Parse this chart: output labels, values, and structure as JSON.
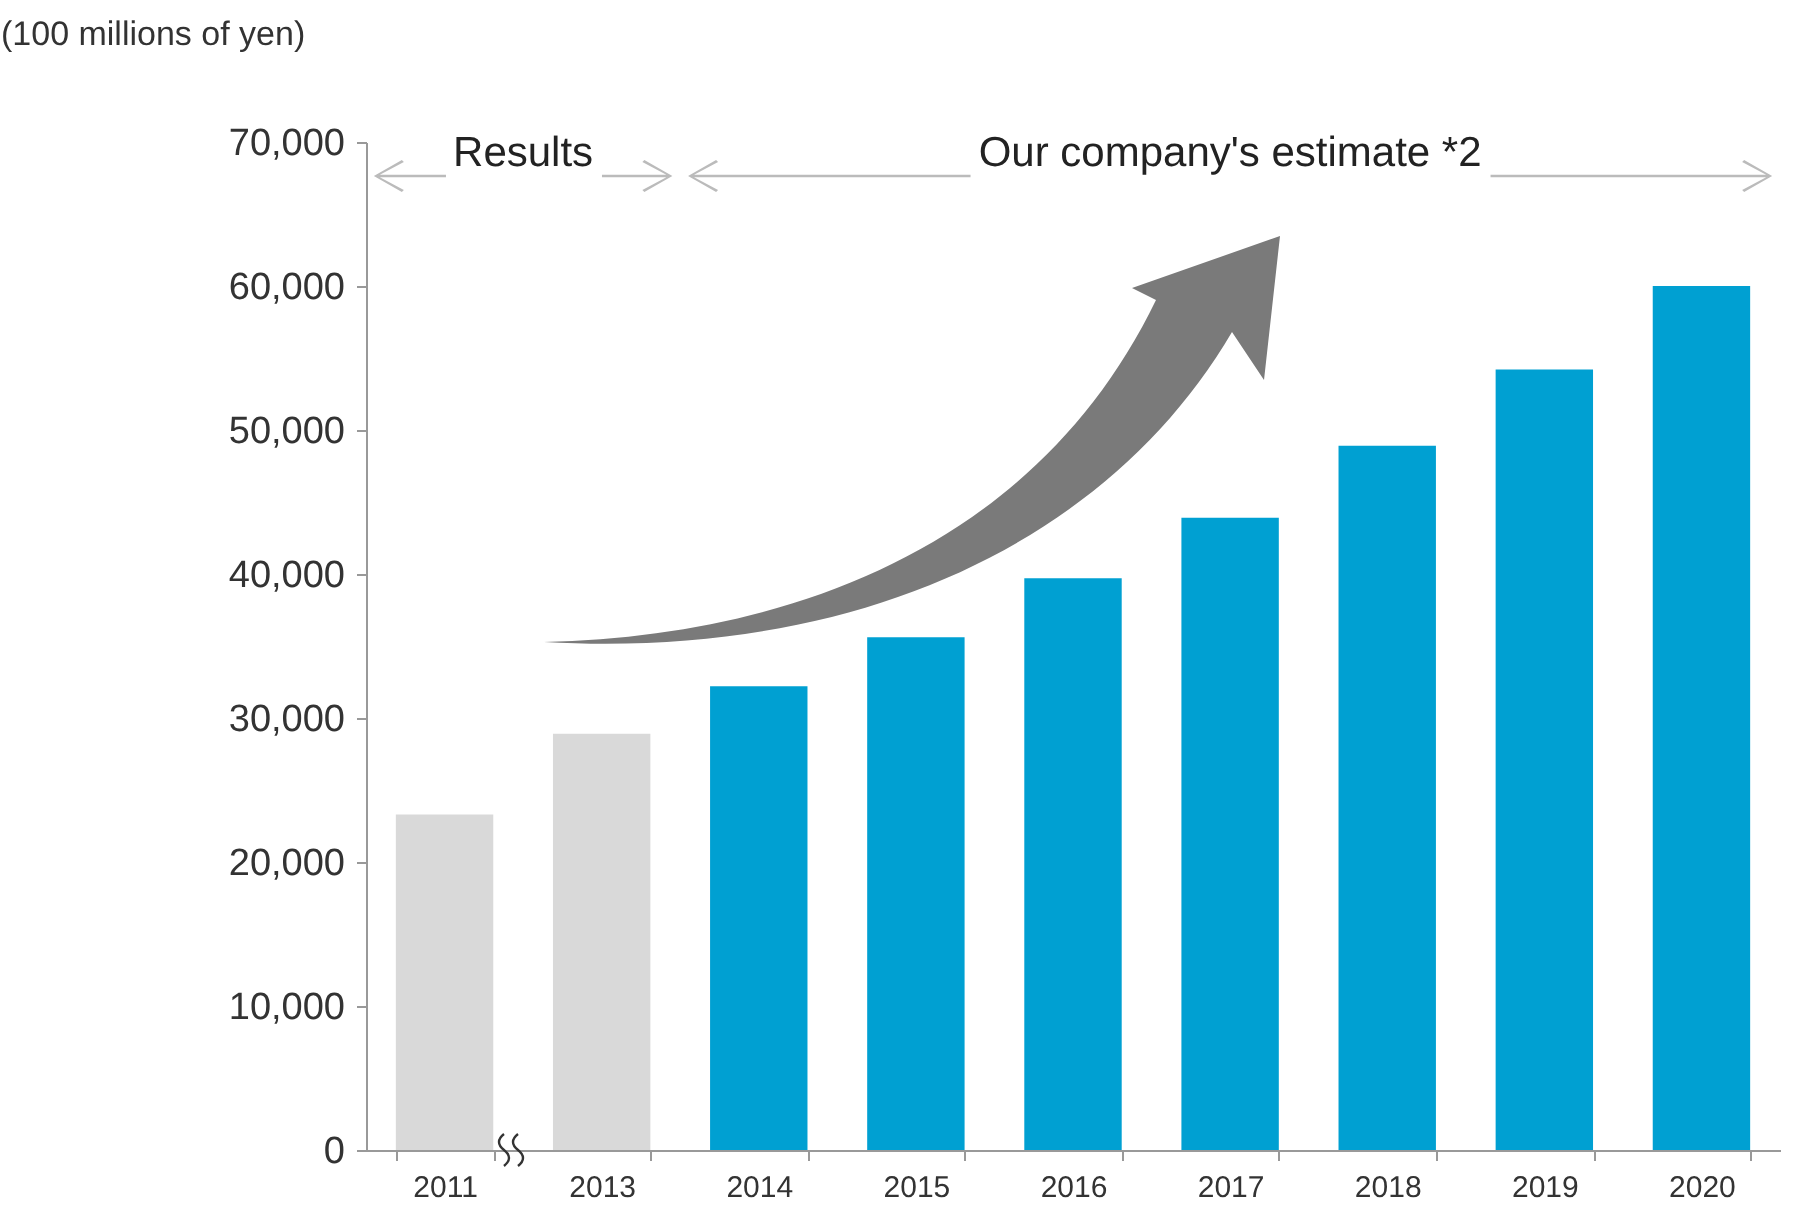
{
  "chart_data": {
    "type": "bar",
    "ylabel": "(100 millions of yen)",
    "categories": [
      "2011",
      "2013",
      "2014",
      "2015",
      "2016",
      "2017",
      "2018",
      "2019",
      "2020"
    ],
    "values": [
      23300,
      28900,
      32200,
      35600,
      39700,
      43900,
      48900,
      54200,
      60000
    ],
    "colors": [
      "#d9d9d9",
      "#d9d9d9",
      "#00a0d2",
      "#00a0d2",
      "#00a0d2",
      "#00a0d2",
      "#00a0d2",
      "#00a0d2",
      "#00a0d2"
    ],
    "ylim": [
      0,
      70000
    ],
    "yticks": [
      0,
      {
        "value": 10000,
        "label": "10,000"
      },
      {
        "value": 20000,
        "label": "20,000"
      },
      {
        "value": 30000,
        "label": "30,000"
      },
      {
        "value": 40000,
        "label": "40,000"
      },
      {
        "value": 50000,
        "label": "50,000"
      },
      {
        "value": 60000,
        "label": "60,000"
      },
      {
        "value": 70000,
        "label": "70,000"
      }
    ],
    "grid": false,
    "annotations": [
      "Results",
      "Our company's estimate *2"
    ]
  }
}
